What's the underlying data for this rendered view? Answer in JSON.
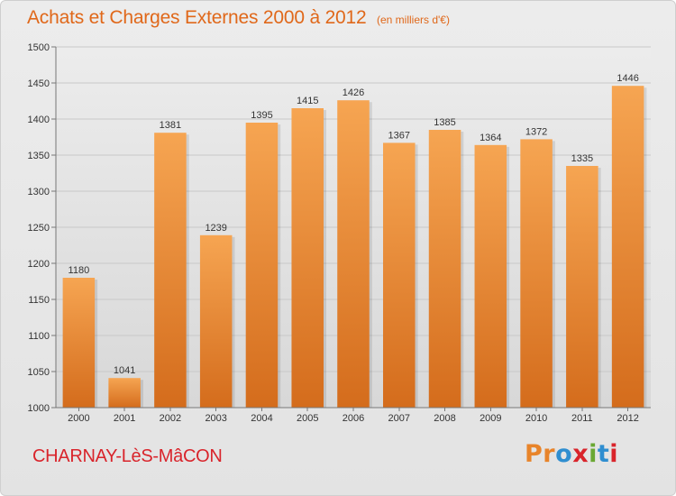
{
  "header": {
    "title": "Achats et Charges Externes 2000 à 2012",
    "subtitle": "(en milliers d'€)"
  },
  "footer": {
    "commune": "CHARNAY-LèS-MâCON",
    "logo_text": "Proxiti"
  },
  "colors": {
    "title": "#e0681a",
    "commune": "#d9242b",
    "bar_top": "#f6a552",
    "bar_bottom": "#d46c1c",
    "logo": [
      "#e8842a",
      "#e8842a",
      "#2f8ed0",
      "#d9242b",
      "#6aa833",
      "#2f8ed0",
      "#d9242b"
    ]
  },
  "chart_data": {
    "type": "bar",
    "categories": [
      "2000",
      "2001",
      "2002",
      "2003",
      "2004",
      "2005",
      "2006",
      "2007",
      "2008",
      "2009",
      "2010",
      "2011",
      "2012"
    ],
    "values": [
      1180,
      1041,
      1381,
      1239,
      1395,
      1415,
      1426,
      1367,
      1385,
      1364,
      1372,
      1335,
      1446
    ],
    "ylim": [
      1000,
      1500
    ],
    "yticks": [
      1000,
      1050,
      1100,
      1150,
      1200,
      1250,
      1300,
      1350,
      1400,
      1450,
      1500
    ],
    "grid": true,
    "data_labels": true
  }
}
